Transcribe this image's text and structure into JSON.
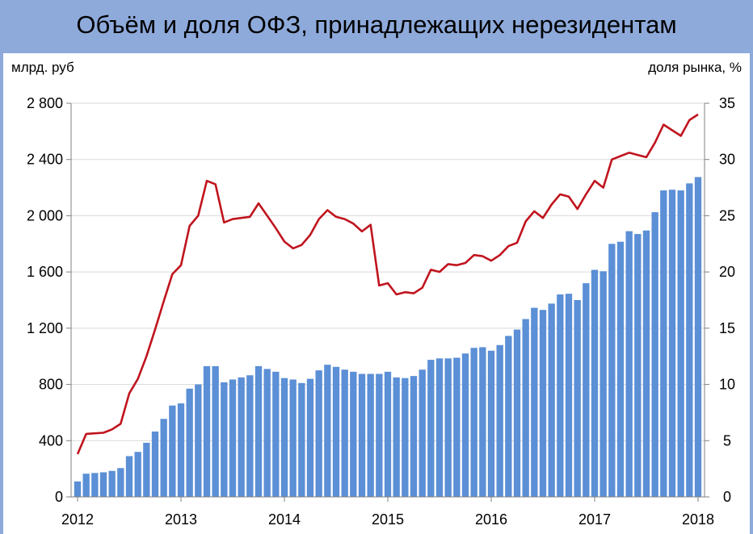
{
  "chart_data": {
    "type": "bar+line",
    "title": "Объём и доля ОФЗ, принадлежащих нерезидентам",
    "y_left_label": "млрд. руб",
    "y_right_label": "доля рынка, %",
    "y_left_lim": [
      0,
      2800
    ],
    "y_left_ticks": [
      "0",
      "400",
      "800",
      "1 200",
      "1 600",
      "2 000",
      "2 400",
      "2 800"
    ],
    "y_right_lim": [
      0,
      35
    ],
    "y_right_ticks": [
      "0",
      "5",
      "10",
      "15",
      "20",
      "25",
      "30",
      "35"
    ],
    "x_ticks": [
      "2012",
      "2013",
      "2014",
      "2015",
      "2016",
      "2017",
      "2018"
    ],
    "x_start": "2012-01",
    "grid": "horizontal",
    "colors": {
      "bars": "#5b8fd6",
      "line": "#c0141e"
    },
    "series": [
      {
        "kind": "bar",
        "axis": "left",
        "values": [
          110,
          165,
          170,
          175,
          185,
          205,
          290,
          320,
          385,
          465,
          555,
          650,
          665,
          770,
          800,
          930,
          930,
          815,
          835,
          850,
          865,
          930,
          910,
          890,
          845,
          835,
          810,
          840,
          900,
          940,
          925,
          905,
          890,
          875,
          875,
          875,
          890,
          850,
          845,
          860,
          905,
          975,
          985,
          985,
          990,
          1020,
          1060,
          1065,
          1040,
          1080,
          1145,
          1190,
          1265,
          1345,
          1330,
          1375,
          1440,
          1445,
          1400,
          1520,
          1615,
          1605,
          1800,
          1815,
          1890,
          1870,
          1895,
          2025,
          2180,
          2185,
          2180,
          2230,
          2275
        ]
      },
      {
        "kind": "line",
        "axis": "right",
        "values": [
          3.8,
          5.6,
          5.65,
          5.7,
          6.0,
          6.5,
          9.2,
          10.5,
          12.5,
          14.9,
          17.4,
          19.8,
          20.6,
          24.1,
          25.0,
          28.1,
          27.8,
          24.4,
          24.7,
          24.8,
          24.9,
          26.1,
          25.0,
          23.9,
          22.7,
          22.1,
          22.4,
          23.3,
          24.7,
          25.5,
          24.9,
          24.7,
          24.3,
          23.6,
          24.2,
          18.8,
          19.0,
          18.0,
          18.2,
          18.1,
          18.6,
          20.2,
          20.0,
          20.7,
          20.6,
          20.8,
          21.5,
          21.4,
          21.0,
          21.5,
          22.3,
          22.6,
          24.5,
          25.4,
          24.8,
          26.0,
          26.9,
          26.7,
          25.6,
          26.9,
          28.1,
          27.5,
          30.0,
          30.3,
          30.6,
          30.4,
          30.2,
          31.5,
          33.1,
          32.6,
          32.1,
          33.5,
          34.0
        ]
      }
    ]
  }
}
